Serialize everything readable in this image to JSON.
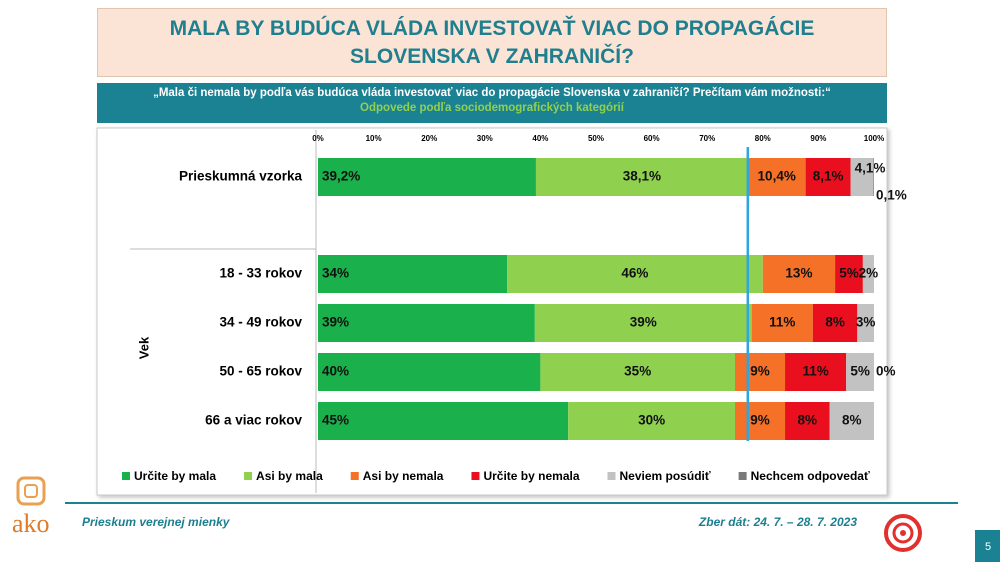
{
  "chart_data": {
    "type": "bar",
    "orientation": "horizontal",
    "stacked": true,
    "title": "MALA BY BUDÚCA VLÁDA INVESTOVAŤ VIAC DO PROPAGÁCIE SLOVENSKA V ZAHRANIČÍ?",
    "question": "„Mala či nemala by podľa vás budúca vláda investovať viac do propagácie Slovenska v zahraničí? Prečítam vám možnosti:“",
    "subtitle": "Odpovede podľa sociodemografických kategórií",
    "group_label": "Vek",
    "categories": [
      "Prieskumná vzorka",
      "18 - 33 rokov",
      "34 - 49 rokov",
      "50 - 65 rokov",
      "66 a viac rokov"
    ],
    "xlim": [
      0,
      100
    ],
    "xticks": [
      {
        "value": 0,
        "label": "0%"
      },
      {
        "value": 10,
        "label": "10%"
      },
      {
        "value": 20,
        "label": "20%"
      },
      {
        "value": 30,
        "label": "30%"
      },
      {
        "value": 40,
        "label": "40%"
      },
      {
        "value": 50,
        "label": "50%"
      },
      {
        "value": 60,
        "label": "60%"
      },
      {
        "value": 70,
        "label": "70%"
      },
      {
        "value": 80,
        "label": "80%"
      },
      {
        "value": 90,
        "label": "90%"
      },
      {
        "value": 100,
        "label": "100%"
      }
    ],
    "grid": false,
    "series": [
      {
        "name": "Určite by mala",
        "color": "#1ab04b",
        "values": [
          39.2,
          34,
          39,
          40,
          45
        ],
        "value_labels": [
          "39,2%",
          "34%",
          "39%",
          "40%",
          "45%"
        ]
      },
      {
        "name": "Asi by mala",
        "color": "#8fd14f",
        "values": [
          38.1,
          46,
          39,
          35,
          30
        ],
        "value_labels": [
          "38,1%",
          "46%",
          "39%",
          "35%",
          "30%"
        ]
      },
      {
        "name": "Asi by nemala",
        "color": "#f47127",
        "values": [
          10.4,
          13,
          11,
          9,
          9
        ],
        "value_labels": [
          "10,4%",
          "13%",
          "11%",
          "9%",
          "9%"
        ]
      },
      {
        "name": "Určite by nemala",
        "color": "#ea0f1e",
        "values": [
          8.1,
          5,
          8,
          11,
          8
        ],
        "value_labels": [
          "8,1%",
          "5%",
          "8%",
          "11%",
          "8%"
        ]
      },
      {
        "name": "Neviem posúdiť",
        "color": "#c2c2c2",
        "values": [
          4.1,
          2,
          3,
          5,
          8
        ],
        "value_labels": [
          "4,1%",
          "2%",
          "3%",
          "5%",
          "8%"
        ]
      },
      {
        "name": "Nechcem odpovedať",
        "color": "#7a7a7a",
        "values": [
          0.1,
          null,
          null,
          0,
          null
        ],
        "value_labels": [
          "0,1%",
          null,
          null,
          "0%",
          null
        ]
      }
    ]
  },
  "footer": {
    "left": "Prieskum verejnej mienky",
    "right": "Zber dát: 24. 7. – 28. 7. 2023",
    "logo": "ako",
    "page": "5"
  }
}
